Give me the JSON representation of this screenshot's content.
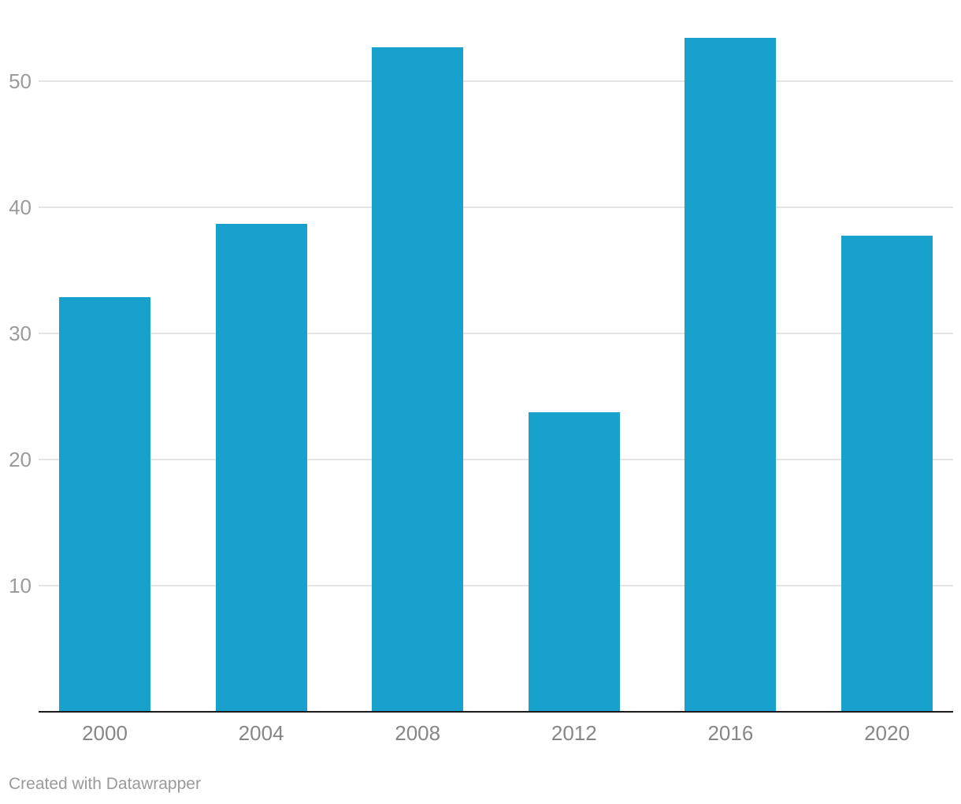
{
  "chart_data": {
    "type": "bar",
    "categories": [
      "2000",
      "2004",
      "2008",
      "2012",
      "2016",
      "2020"
    ],
    "values": [
      32.8,
      38.6,
      52.6,
      23.7,
      53.4,
      37.7
    ],
    "title": "",
    "xlabel": "",
    "ylabel": "",
    "ylim": [
      0,
      56.4
    ],
    "yticks": [
      10,
      20,
      30,
      40,
      50
    ],
    "grid": true,
    "legend": false,
    "bar_color": "#18a1cd"
  },
  "colors": {
    "bar": "#18a1cd",
    "gridline": "#e4e4e4",
    "axis_line": "#1a1a1a",
    "y_tick_text": "#9b9b9b",
    "x_tick_text": "#868686",
    "footer_text": "#9a9a9a",
    "background": "#ffffff"
  },
  "footer": {
    "credit": "Created with Datawrapper"
  }
}
